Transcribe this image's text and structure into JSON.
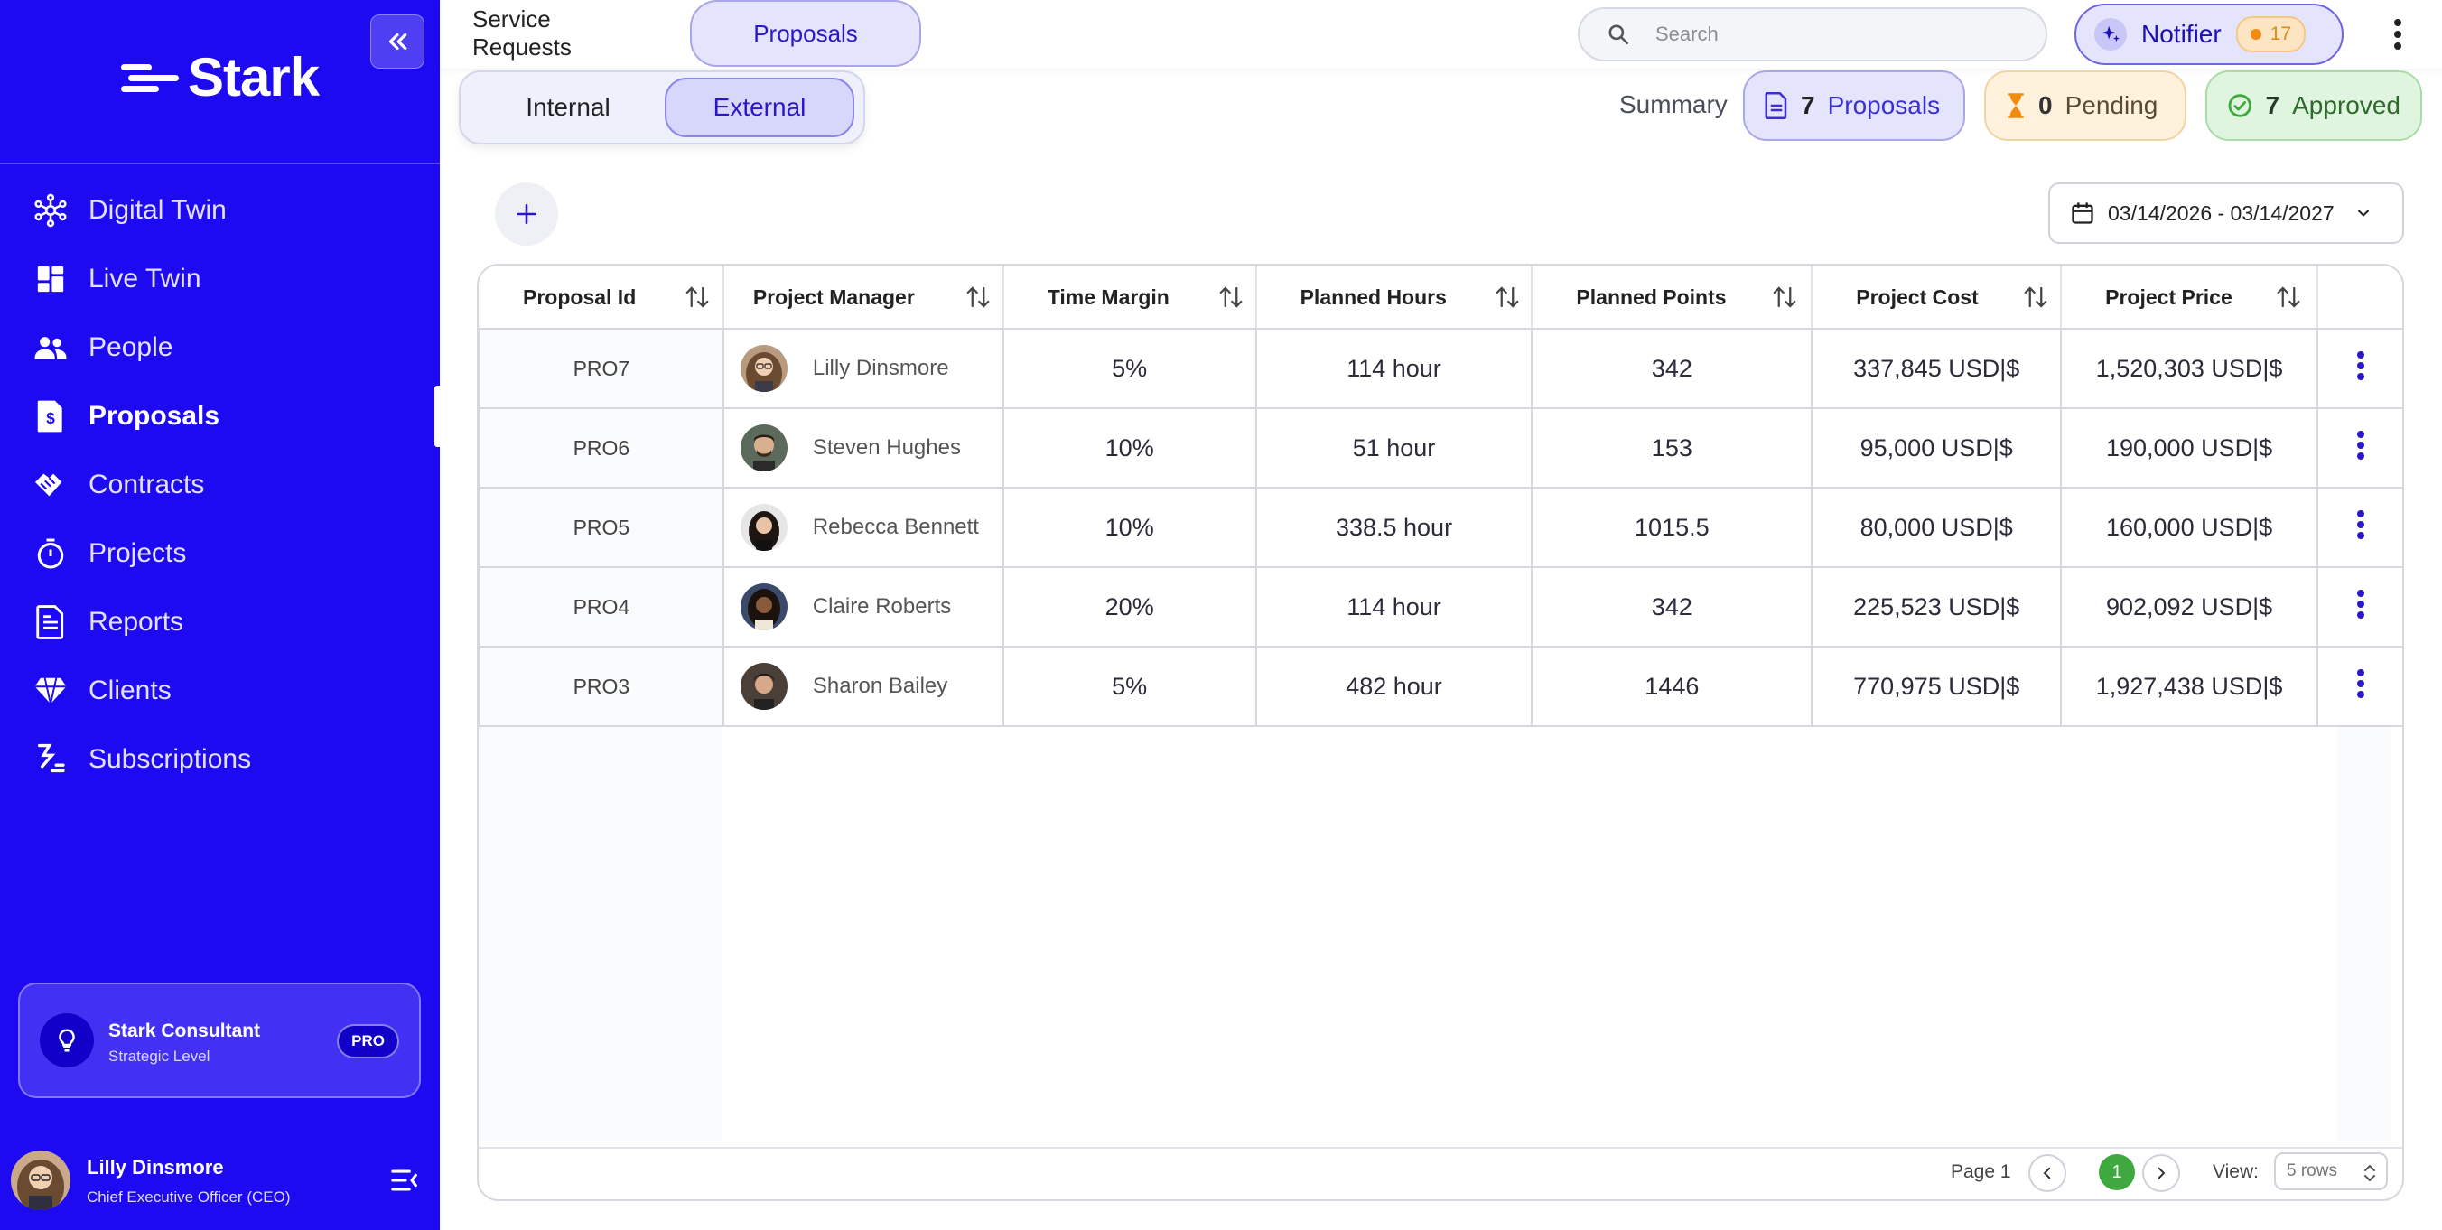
{
  "sidebar": {
    "brand": "Stark",
    "nav": [
      {
        "label": "Digital Twin",
        "icon": "hub-icon",
        "active": false
      },
      {
        "label": "Live Twin",
        "icon": "dashboard-icon",
        "active": false
      },
      {
        "label": "People",
        "icon": "people-icon",
        "active": false
      },
      {
        "label": "Proposals",
        "icon": "proposal-doc-icon",
        "active": true
      },
      {
        "label": "Contracts",
        "icon": "handshake-icon",
        "active": false
      },
      {
        "label": "Projects",
        "icon": "stopwatch-icon",
        "active": false
      },
      {
        "label": "Reports",
        "icon": "document-icon",
        "active": false
      },
      {
        "label": "Clients",
        "icon": "diamond-icon",
        "active": false
      },
      {
        "label": "Subscriptions",
        "icon": "subscription-icon",
        "active": false
      }
    ],
    "plan": {
      "title": "Stark Consultant",
      "subtitle": "Strategic Level",
      "badge": "PRO"
    },
    "user": {
      "name": "Lilly Dinsmore",
      "role": "Chief Executive Officer (CEO)"
    }
  },
  "topbar": {
    "tabs": {
      "service": "Service Requests",
      "proposals": "Proposals"
    },
    "search": {
      "placeholder": "Search",
      "value": ""
    },
    "notifier": {
      "label": "Notifier",
      "count": "17"
    }
  },
  "subtabs": {
    "internal": "Internal",
    "external": "External"
  },
  "summary": {
    "label": "Summary",
    "proposals": {
      "count": "7",
      "label": "Proposals"
    },
    "pending": {
      "count": "0",
      "label": "Pending"
    },
    "approved": {
      "count": "7",
      "label": "Approved"
    }
  },
  "date_range": "03/14/2026 - 03/14/2027",
  "table": {
    "columns": [
      "Proposal Id",
      "Project Manager",
      "Time Margin",
      "Planned Hours",
      "Planned Points",
      "Project Cost",
      "Project Price"
    ],
    "rows": [
      {
        "id": "PRO7",
        "manager": "Lilly Dinsmore",
        "margin": "5%",
        "hours": "114 hour",
        "points": "342",
        "cost": "337,845 USD|$",
        "price": "1,520,303 USD|$"
      },
      {
        "id": "PRO6",
        "manager": "Steven Hughes",
        "margin": "10%",
        "hours": "51 hour",
        "points": "153",
        "cost": "95,000 USD|$",
        "price": "190,000 USD|$"
      },
      {
        "id": "PRO5",
        "manager": "Rebecca Bennett",
        "margin": "10%",
        "hours": "338.5 hour",
        "points": "1015.5",
        "cost": "80,000 USD|$",
        "price": "160,000 USD|$"
      },
      {
        "id": "PRO4",
        "manager": "Claire Roberts",
        "margin": "20%",
        "hours": "114 hour",
        "points": "342",
        "cost": "225,523 USD|$",
        "price": "902,092 USD|$"
      },
      {
        "id": "PRO3",
        "manager": "Sharon Bailey",
        "margin": "5%",
        "hours": "482 hour",
        "points": "1446",
        "cost": "770,975 USD|$",
        "price": "1,927,438 USD|$"
      }
    ]
  },
  "pagination": {
    "page_label": "Page 1",
    "current": "1",
    "view_label": "View:",
    "rows_option": "5 rows"
  },
  "colors": {
    "sidebar": "#1e0af0",
    "accent": "#2a18c8",
    "pending": "#f08c10",
    "approved": "#3fa83f"
  }
}
